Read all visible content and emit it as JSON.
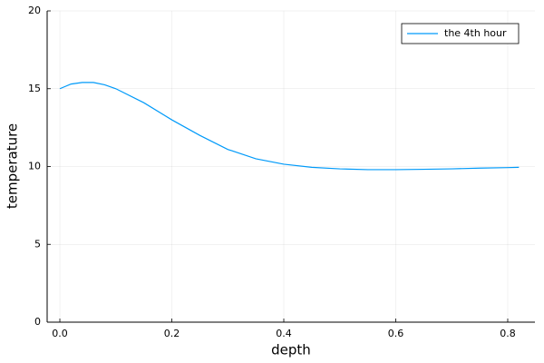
{
  "chart_data": {
    "type": "line",
    "xlabel": "depth",
    "ylabel": "temperature",
    "x": [
      0.0,
      0.02,
      0.04,
      0.06,
      0.08,
      0.1,
      0.15,
      0.2,
      0.25,
      0.3,
      0.35,
      0.4,
      0.45,
      0.5,
      0.55,
      0.6,
      0.65,
      0.7,
      0.75,
      0.8,
      0.82
    ],
    "series": [
      {
        "name": "the 4th hour",
        "color": "#009af9",
        "values": [
          15.0,
          15.3,
          15.4,
          15.4,
          15.25,
          15.0,
          14.1,
          13.0,
          12.0,
          11.1,
          10.5,
          10.15,
          9.95,
          9.85,
          9.8,
          9.8,
          9.82,
          9.85,
          9.9,
          9.93,
          9.95
        ]
      }
    ],
    "xlim": [
      -0.0227,
      0.8486
    ],
    "ylim": [
      0,
      20
    ],
    "xticks": [
      {
        "value": 0,
        "label": "0.0"
      },
      0.2,
      0.4,
      0.6,
      0.8
    ],
    "yticks": [
      0,
      5,
      10,
      15,
      20
    ],
    "grid": true,
    "legend": "top-right"
  }
}
